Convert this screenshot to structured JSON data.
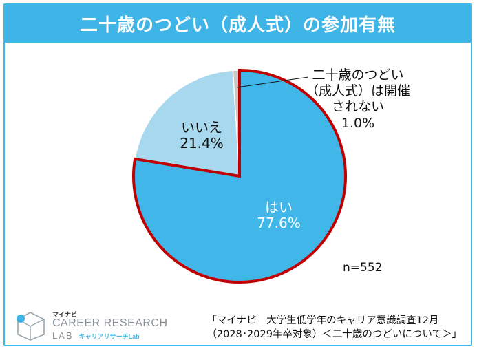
{
  "title": "二十歳のつどい（成人式）の参加有無",
  "sample_size": "n=552",
  "source": {
    "line1": "「マイナビ　大学生低学年のキャリア意識調査12月",
    "line2": "（2028･2029年卒対象）＜二十歳のつどいについて＞」"
  },
  "logo": {
    "brand_small": "マイナビ",
    "line1": "CAREER RESEARCH",
    "line2": "LAB",
    "line2_kana": "キャリアリサーチLab"
  },
  "colors": {
    "title_bg": "#3fb4e6",
    "highlight_border": "#c00000"
  },
  "chart_data": {
    "type": "pie",
    "start_angle": "12 o'clock, clockwise",
    "slices": [
      {
        "label": "はい",
        "value": 77.6,
        "value_label": "77.6%",
        "color": "#41b6e8",
        "highlighted": true
      },
      {
        "label": "いいえ",
        "value": 21.4,
        "value_label": "21.4%",
        "color": "#a8d8ee",
        "highlighted": false
      },
      {
        "label_lines": [
          "二十歳のつどい",
          "（成人式）は開催",
          "されない"
        ],
        "value": 1.0,
        "value_label": "1.0%",
        "color": "#c8c8c8",
        "highlighted": false
      }
    ]
  }
}
